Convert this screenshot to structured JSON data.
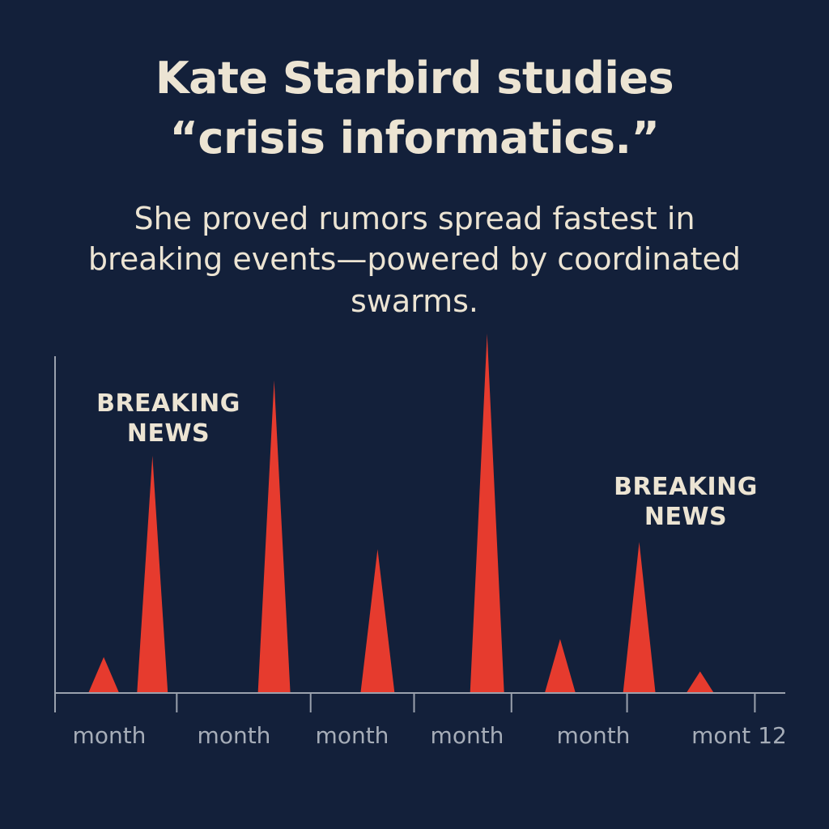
{
  "header": {
    "title_lines": [
      "Kate Starbird studies",
      "“crisis informatics.”"
    ],
    "subtitle_lines": [
      "She proved rumors spread fastest in",
      "breaking events—powered by coordinated",
      "swarms."
    ]
  },
  "colors": {
    "background": "#13203a",
    "spike": "#e63b2e",
    "axis": "#9aa1ad",
    "text": "#ece4d3"
  },
  "chart_data": {
    "type": "area",
    "x_tick_labels": [
      "month",
      "month",
      "month",
      "month",
      "month",
      "mont 12"
    ],
    "x_ticks": [
      2,
      4.2,
      5.9,
      7.5,
      9.4,
      11.5
    ],
    "xlim": [
      0,
      12
    ],
    "ylim": [
      0,
      100
    ],
    "grid": false,
    "legend": "none",
    "series": [
      {
        "spikes": [
          {
            "x": 0.8,
            "value": 10
          },
          {
            "x": 1.6,
            "value": 66
          },
          {
            "x": 3.6,
            "value": 87
          },
          {
            "x": 5.3,
            "value": 40
          },
          {
            "x": 7.1,
            "value": 100
          },
          {
            "x": 8.3,
            "value": 15
          },
          {
            "x": 9.6,
            "value": 42
          },
          {
            "x": 10.6,
            "value": 6
          }
        ]
      }
    ],
    "annotations": [
      {
        "lines": [
          "BREAKING",
          "NEWS"
        ],
        "spike_index": 1
      },
      {
        "lines": [
          "BREAKING",
          "NEWS"
        ],
        "spike_index": 6
      }
    ]
  }
}
